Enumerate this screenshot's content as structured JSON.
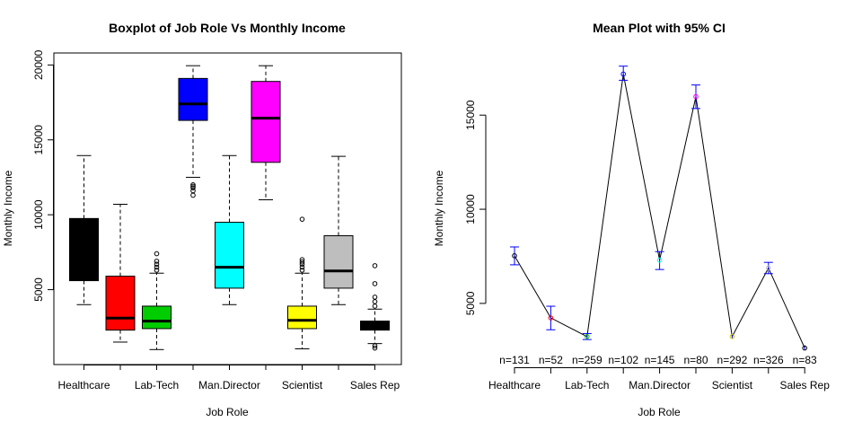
{
  "chart_data": [
    {
      "type": "boxplot",
      "title": "Boxplot of Job Role Vs Monthly Income",
      "xlabel": "Job Role",
      "ylabel": "Monthly Income",
      "ylim": [
        0,
        20800
      ],
      "yticks": [
        5000,
        10000,
        15000,
        20000
      ],
      "xtick_labels": [
        "Healthcare",
        "Lab-Tech",
        "Man.Director",
        "Scientist",
        "Sales Rep"
      ],
      "xtick_label_positions": [
        1,
        3,
        5,
        7,
        9
      ],
      "boxes": [
        {
          "position": 1,
          "color": "#000000",
          "min": 4000,
          "q1": 5600,
          "median": 7700,
          "q3": 9750,
          "max": 13950,
          "outliers": []
        },
        {
          "position": 2,
          "color": "#ff0000",
          "min": 1500,
          "q1": 2300,
          "median": 3100,
          "q3": 5900,
          "max": 10700,
          "outliers": []
        },
        {
          "position": 3,
          "color": "#00cd00",
          "min": 1000,
          "q1": 2400,
          "median": 2900,
          "q3": 3900,
          "max": 6100,
          "outliers": [
            6300,
            6500,
            6700,
            6900,
            7400
          ]
        },
        {
          "position": 4,
          "color": "#0000ff",
          "min": 12500,
          "q1": 16300,
          "median": 17400,
          "q3": 19100,
          "max": 19950,
          "outliers": [
            11300,
            11600,
            11800,
            11900,
            12000
          ]
        },
        {
          "position": 5,
          "color": "#00ffff",
          "min": 4000,
          "q1": 5100,
          "median": 6500,
          "q3": 9500,
          "max": 13950,
          "outliers": []
        },
        {
          "position": 6,
          "color": "#ff00ff",
          "min": 11000,
          "q1": 13500,
          "median": 16450,
          "q3": 18900,
          "max": 19950,
          "outliers": []
        },
        {
          "position": 7,
          "color": "#ffff00",
          "min": 1050,
          "q1": 2400,
          "median": 2950,
          "q3": 3900,
          "max": 6100,
          "outliers": [
            6300,
            6500,
            6700,
            6850,
            7000,
            9700
          ]
        },
        {
          "position": 8,
          "color": "#bebebe",
          "min": 4000,
          "q1": 5100,
          "median": 6250,
          "q3": 8600,
          "max": 13900,
          "outliers": []
        },
        {
          "position": 9,
          "color": "#000000",
          "min": 1400,
          "q1": 2300,
          "median": 2650,
          "q3": 2900,
          "max": 3700,
          "outliers": [
            1100,
            1250,
            3900,
            4200,
            4500,
            5400,
            6600
          ]
        }
      ]
    },
    {
      "type": "line",
      "title": "Mean Plot with 95% CI",
      "xlabel": "Job Role",
      "ylabel": "Monthly Income",
      "ylim": [
        1800,
        18300
      ],
      "yticks": [
        5000,
        10000,
        15000
      ],
      "xtick_labels": [
        "Healthcare",
        "Lab-Tech",
        "Man.Director",
        "Scientist",
        "Sales Rep"
      ],
      "xtick_label_positions": [
        1,
        3,
        5,
        7,
        9
      ],
      "n_labels": [
        "n=131",
        "n=52",
        "n=259",
        "n=102",
        "n=145",
        "n=80",
        "n=292",
        "n=326",
        "n=83"
      ],
      "points": [
        {
          "x": 1,
          "mean": 7530,
          "ci": [
            7050,
            8000
          ],
          "color": "#000000"
        },
        {
          "x": 2,
          "mean": 4230,
          "ci": [
            3600,
            4850
          ],
          "color": "#ff0000"
        },
        {
          "x": 3,
          "mean": 3240,
          "ci": [
            3080,
            3400
          ],
          "color": "#00cd00"
        },
        {
          "x": 4,
          "mean": 17180,
          "ci": [
            16850,
            17600
          ],
          "color": "#0000ff"
        },
        {
          "x": 5,
          "mean": 7300,
          "ci": [
            6800,
            7750
          ],
          "color": "#00ffff"
        },
        {
          "x": 6,
          "mean": 15980,
          "ci": [
            15350,
            16600
          ],
          "color": "#ff00ff"
        },
        {
          "x": 7,
          "mean": 3240,
          "ci": [
            3130,
            3360
          ],
          "color": "#ffff00"
        },
        {
          "x": 8,
          "mean": 6880,
          "ci": [
            6580,
            7180
          ],
          "color": "#bebebe"
        },
        {
          "x": 9,
          "mean": 2630,
          "ci": [
            2520,
            2760
          ],
          "color": "#000000"
        }
      ],
      "ci_bar_color": "#0000ff"
    }
  ]
}
